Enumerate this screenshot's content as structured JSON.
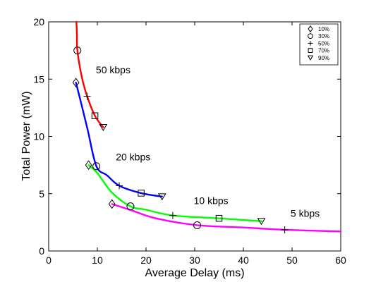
{
  "chart_data": {
    "type": "line",
    "title": "",
    "xlabel": "Average Delay (ms)",
    "ylabel": "Total Power (mW)",
    "xlim": [
      0,
      60
    ],
    "ylim": [
      0,
      20
    ],
    "xticks": [
      "0",
      "10",
      "20",
      "30",
      "40",
      "50",
      "60"
    ],
    "yticks": [
      "0",
      "5",
      "10",
      "15",
      "20"
    ],
    "grid": false,
    "legend_position": "top-right",
    "legend": [
      {
        "marker": "diamond",
        "label": "10%"
      },
      {
        "marker": "circle",
        "label": "30%"
      },
      {
        "marker": "plus",
        "label": "50%"
      },
      {
        "marker": "square",
        "label": "70%"
      },
      {
        "marker": "triangle-down",
        "label": "90%"
      }
    ],
    "curves": [
      {
        "color": "#ff0000",
        "points": [
          [
            5.7,
            20
          ],
          [
            5.8,
            19
          ],
          [
            5.9,
            17.5
          ],
          [
            6.8,
            15.2
          ],
          [
            7.9,
            13.5
          ],
          [
            9.5,
            11.8
          ],
          [
            11.2,
            10.8
          ]
        ]
      },
      {
        "color": "#0000ff",
        "points": [
          [
            5.6,
            14.7
          ],
          [
            6.5,
            13.2
          ],
          [
            8,
            10.6
          ],
          [
            9.8,
            7.4
          ],
          [
            12,
            6.6
          ],
          [
            14.5,
            5.7
          ],
          [
            19,
            5.05
          ],
          [
            23.3,
            4.75
          ]
        ]
      },
      {
        "color": "#00ff00",
        "points": [
          [
            8.2,
            7.5
          ],
          [
            10,
            6.8
          ],
          [
            13,
            5.1
          ],
          [
            16.8,
            3.9
          ],
          [
            20,
            3.6
          ],
          [
            25.5,
            3.1
          ],
          [
            35,
            2.85
          ],
          [
            43.7,
            2.6
          ]
        ]
      },
      {
        "color": "#ff00ff",
        "points": [
          [
            13,
            4.1
          ],
          [
            17,
            3.55
          ],
          [
            22,
            2.85
          ],
          [
            30.5,
            2.25
          ],
          [
            40,
            2.05
          ],
          [
            48.5,
            1.85
          ],
          [
            60,
            1.7
          ]
        ]
      }
    ],
    "markers": [
      {
        "shape": "circle",
        "x": 5.9,
        "y": 17.5
      },
      {
        "shape": "plus",
        "x": 7.9,
        "y": 13.5
      },
      {
        "shape": "square",
        "x": 9.5,
        "y": 11.8
      },
      {
        "shape": "triangle-down",
        "x": 11.2,
        "y": 10.8
      },
      {
        "shape": "diamond",
        "x": 5.6,
        "y": 14.7
      },
      {
        "shape": "circle",
        "x": 9.8,
        "y": 7.4
      },
      {
        "shape": "plus",
        "x": 14.5,
        "y": 5.7
      },
      {
        "shape": "square",
        "x": 19,
        "y": 5.05
      },
      {
        "shape": "triangle-down",
        "x": 23.3,
        "y": 4.75
      },
      {
        "shape": "diamond",
        "x": 8.2,
        "y": 7.5
      },
      {
        "shape": "circle",
        "x": 16.8,
        "y": 3.9
      },
      {
        "shape": "plus",
        "x": 25.5,
        "y": 3.1
      },
      {
        "shape": "square",
        "x": 35,
        "y": 2.85
      },
      {
        "shape": "triangle-down",
        "x": 43.7,
        "y": 2.6
      },
      {
        "shape": "diamond",
        "x": 13,
        "y": 4.1
      },
      {
        "shape": "circle",
        "x": 30.5,
        "y": 2.25
      },
      {
        "shape": "plus",
        "x": 48.5,
        "y": 1.85
      }
    ],
    "annotations": [
      {
        "text": "50 kbps",
        "x": 9.7,
        "y": 15.5
      },
      {
        "text": "20 kbps",
        "x": 13.8,
        "y": 7.9
      },
      {
        "text": "10 kbps",
        "x": 29.8,
        "y": 4.1
      },
      {
        "text": "5 kbps",
        "x": 49.7,
        "y": 3.0
      }
    ]
  }
}
